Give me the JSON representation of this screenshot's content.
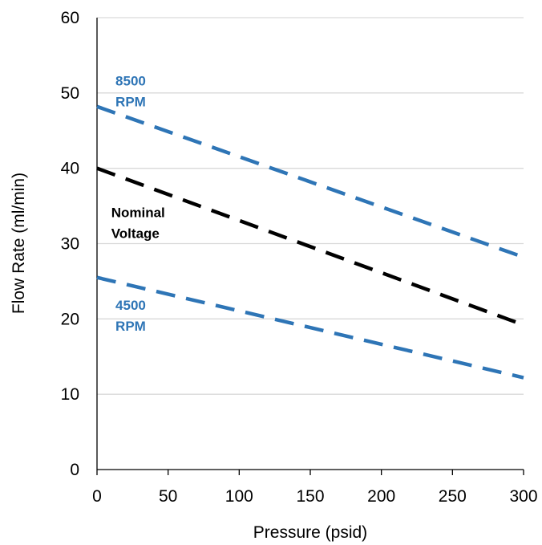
{
  "chart_data": {
    "type": "line",
    "title": "",
    "xlabel": "Pressure (psid)",
    "ylabel": "Flow Rate (ml/min)",
    "xlim": [
      0,
      300
    ],
    "ylim": [
      0,
      60
    ],
    "x_ticks": [
      0,
      50,
      100,
      150,
      200,
      250,
      300
    ],
    "y_ticks": [
      0,
      10,
      20,
      30,
      40,
      50,
      60
    ],
    "x_tick_labels": [
      "0",
      "50",
      "100",
      "150",
      "200",
      "250",
      "300"
    ],
    "y_tick_labels": [
      "0",
      "10",
      "20",
      "30",
      "40",
      "50",
      "60"
    ],
    "grid": "horizontal",
    "legend": "none",
    "series": [
      {
        "name": "8500 RPM",
        "color": "#2E75B6",
        "style": "dashed",
        "x": [
          0,
          300
        ],
        "y": [
          48.2,
          28.2
        ]
      },
      {
        "name": "Nominal Voltage",
        "color": "#000000",
        "style": "dashed",
        "x": [
          0,
          300
        ],
        "y": [
          40.0,
          19.2
        ]
      },
      {
        "name": "4500 RPM",
        "color": "#2E75B6",
        "style": "dashed",
        "x": [
          0,
          300
        ],
        "y": [
          25.5,
          12.2
        ]
      }
    ],
    "annotations": [
      {
        "lines": [
          "8500",
          "RPM"
        ],
        "color": "#2E75B6",
        "x": 13,
        "y": 51
      },
      {
        "lines": [
          "Nominal",
          "Voltage"
        ],
        "color": "#000000",
        "x": 10,
        "y": 33.5
      },
      {
        "lines": [
          "4500",
          "RPM"
        ],
        "color": "#2E75B6",
        "x": 13,
        "y": 21.2
      }
    ]
  }
}
